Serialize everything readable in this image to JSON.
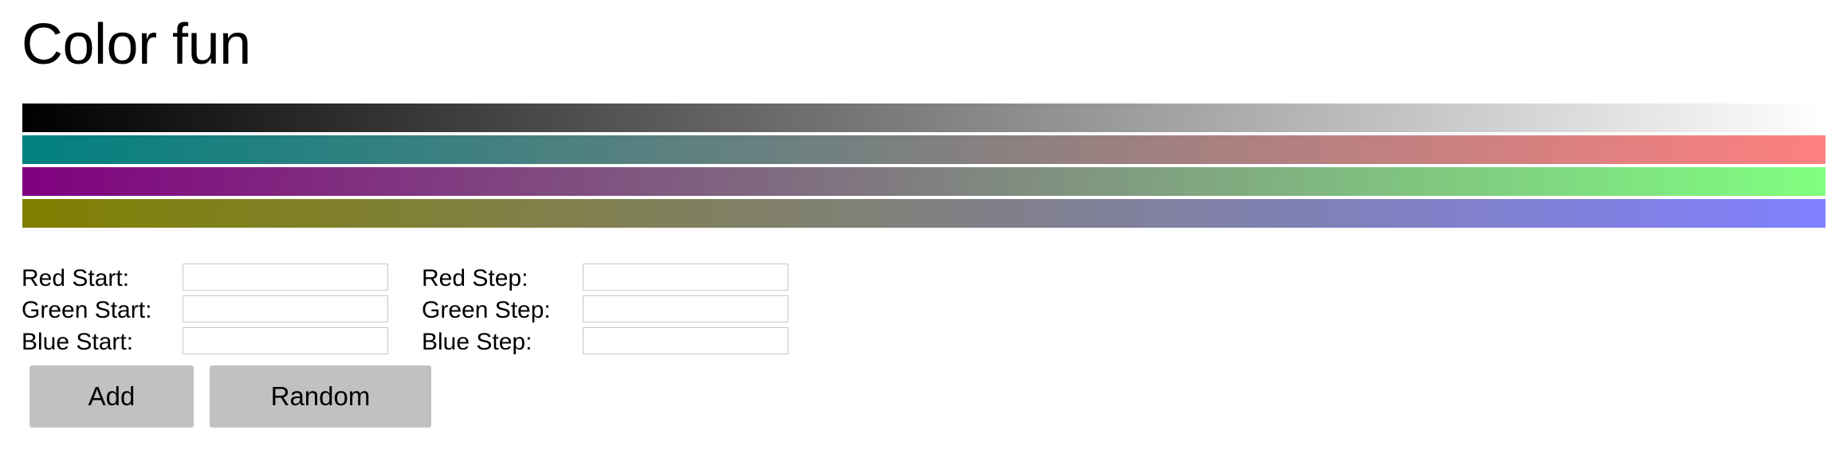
{
  "page": {
    "title": "Color fun"
  },
  "gradients": [
    {
      "start": "#000000",
      "end": "#ffffff"
    },
    {
      "start": "#008080",
      "end": "#ff8080"
    },
    {
      "start": "#800080",
      "end": "#80ff80"
    },
    {
      "start": "#808000",
      "end": "#8080ff"
    }
  ],
  "form": {
    "red_start_label": "Red Start:",
    "green_start_label": "Green Start:",
    "blue_start_label": "Blue Start:",
    "red_step_label": "Red Step:",
    "green_step_label": "Green Step:",
    "blue_step_label": "Blue Step:",
    "red_start_value": "",
    "green_start_value": "",
    "blue_start_value": "",
    "red_step_value": "",
    "green_step_value": "",
    "blue_step_value": ""
  },
  "buttons": {
    "add_label": "Add",
    "random_label": "Random"
  }
}
